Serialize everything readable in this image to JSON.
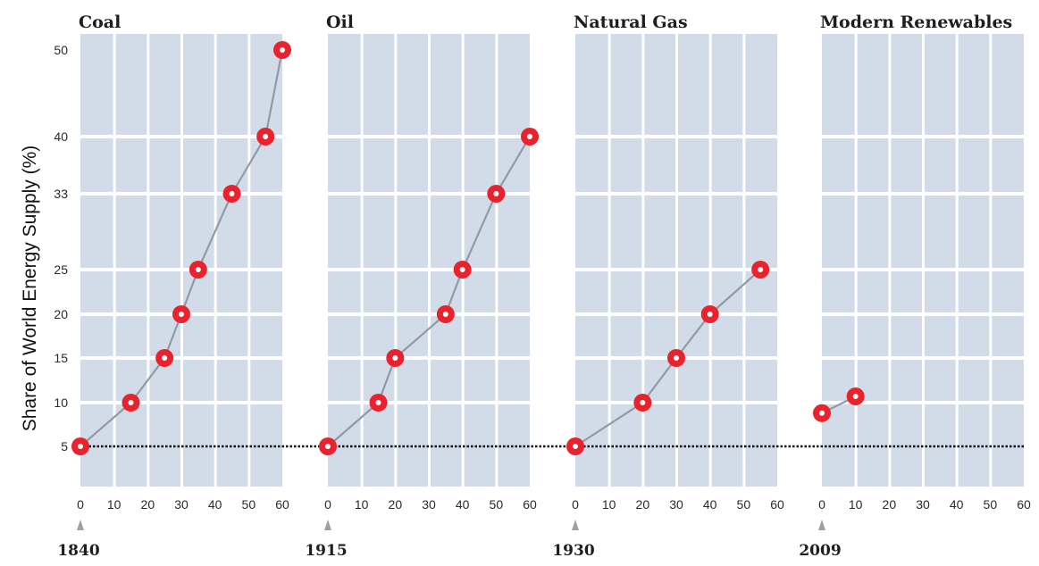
{
  "chart_data": {
    "type": "line",
    "ylabel": "Share of World Energy Supply (%)",
    "y_tick_values": [
      5,
      10,
      15,
      20,
      25,
      33,
      40,
      50
    ],
    "y_tick_labels": [
      "5",
      "10",
      "15",
      "20",
      "25",
      "33",
      "40",
      "50"
    ],
    "x_tick_labels": [
      "0",
      "10",
      "20",
      "30",
      "40",
      "50",
      "60"
    ],
    "xlim": [
      0,
      60
    ],
    "reference_line_y": 5,
    "grid": true,
    "colors": {
      "panel": "#d2dce8",
      "line": "#9299a4",
      "marker": "#e8232d",
      "marker_center": "#ffffff",
      "reference": "#111111",
      "arrow": "#a0a0a0"
    },
    "panels": [
      {
        "title": "Coal",
        "start_year": "1840",
        "x": [
          0,
          15,
          25,
          30,
          35,
          45,
          55,
          60
        ],
        "y": [
          5,
          10,
          15,
          20,
          25,
          33,
          40,
          50
        ]
      },
      {
        "title": "Oil",
        "start_year": "1915",
        "x": [
          0,
          15,
          20,
          35,
          40,
          50,
          60
        ],
        "y": [
          5,
          10,
          15,
          20,
          25,
          33,
          40
        ]
      },
      {
        "title": "Natural Gas",
        "start_year": "1930",
        "x": [
          0,
          20,
          30,
          40,
          55
        ],
        "y": [
          5,
          10,
          15,
          20,
          25
        ]
      },
      {
        "title": "Modern Renewables",
        "start_year": "2009",
        "x": [
          0,
          10
        ],
        "y": [
          8.8,
          10.7
        ]
      }
    ]
  }
}
